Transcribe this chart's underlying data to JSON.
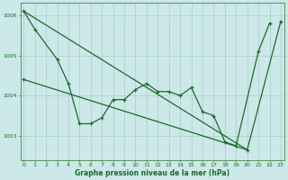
{
  "title": "Graphe pression niveau de la mer (hPa)",
  "background_color": "#cce8e8",
  "grid_color": "#aacccc",
  "line_color": "#1a6b2a",
  "hours": [
    0,
    1,
    2,
    3,
    4,
    5,
    6,
    7,
    8,
    9,
    10,
    11,
    12,
    13,
    14,
    15,
    16,
    17,
    18,
    19,
    20,
    21,
    22,
    23
  ],
  "pressure_main": [
    1006.1,
    1005.65,
    null,
    1004.9,
    1004.3,
    1003.3,
    1003.3,
    1003.45,
    1003.9,
    1003.9,
    1004.15,
    1004.3,
    1004.1,
    1004.1,
    1004.0,
    1004.2,
    1003.6,
    1003.5,
    1002.85,
    1002.75,
    null,
    1005.1,
    1005.8,
    null
  ],
  "diag_line1_x": [
    0,
    20
  ],
  "diag_line1_y": [
    1006.1,
    1002.65
  ],
  "diag_line2_x": [
    0,
    20,
    23
  ],
  "diag_line2_y": [
    1004.4,
    1002.65,
    1005.85
  ],
  "ylim": [
    1002.4,
    1006.3
  ],
  "yticks": [
    1003,
    1004,
    1005,
    1006
  ],
  "xlim": [
    -0.3,
    23.3
  ],
  "xticks": [
    0,
    1,
    2,
    3,
    4,
    5,
    6,
    7,
    8,
    9,
    10,
    11,
    12,
    13,
    14,
    15,
    16,
    17,
    18,
    19,
    20,
    21,
    22,
    23
  ]
}
